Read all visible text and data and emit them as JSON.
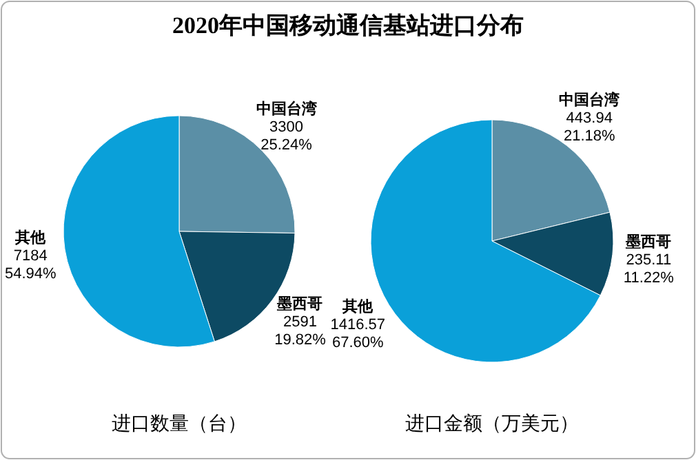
{
  "chart_data": [
    {
      "type": "pie",
      "title": "2020年中国移动通信基站进口分布",
      "xlabel": "进口数量（台）",
      "categories": [
        "中国台湾",
        "墨西哥",
        "其他"
      ],
      "values": [
        3300,
        2591,
        7184
      ],
      "colors": [
        "#5b8fa6",
        "#0d4a63",
        "#0aa0d9"
      ],
      "value_labels": [
        "3300\n25.24%",
        "2591\n19.82%",
        "7184\n54.94%"
      ]
    },
    {
      "type": "pie",
      "xlabel": "进口金额（万美元）",
      "categories": [
        "中国台湾",
        "墨西哥",
        "其他"
      ],
      "values": [
        443.94,
        235.11,
        1416.57
      ],
      "colors": [
        "#5b8fa6",
        "#0d4a63",
        "#0aa0d9"
      ],
      "value_labels": [
        "443.94\n21.18%",
        "235.11\n11.22%",
        "1416.57\n67.60%"
      ]
    }
  ]
}
